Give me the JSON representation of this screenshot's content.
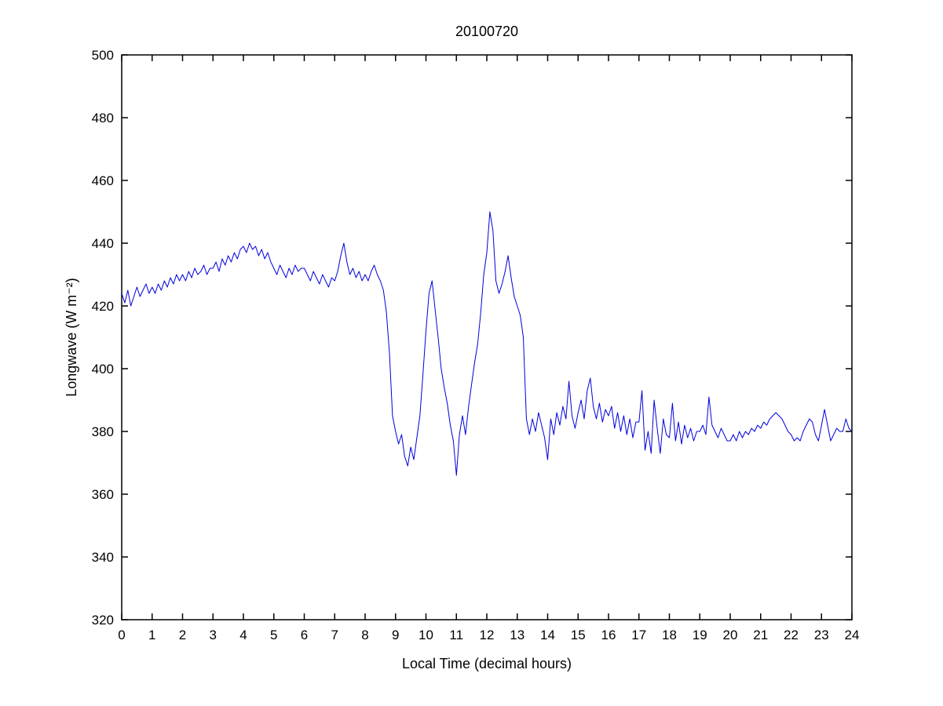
{
  "figure": {
    "background": "#ffffff",
    "axis_color": "#000000"
  },
  "chart_data": {
    "type": "line",
    "title": "20100720",
    "xlabel": "Local Time (decimal hours)",
    "ylabel": "Longwave (W m⁻²)",
    "xlim": [
      0,
      24
    ],
    "ylim": [
      320,
      500
    ],
    "xticks": [
      0,
      1,
      2,
      3,
      4,
      5,
      6,
      7,
      8,
      9,
      10,
      11,
      12,
      13,
      14,
      15,
      16,
      17,
      18,
      19,
      20,
      21,
      22,
      23,
      24
    ],
    "yticks": [
      320,
      340,
      360,
      380,
      400,
      420,
      440,
      460,
      480,
      500
    ],
    "grid": false,
    "legend": null,
    "line_color": "#0000DD",
    "line_width": 1,
    "x_start": 0,
    "x_step": 0.1,
    "series": [
      {
        "name": "longwave",
        "values": [
          424,
          421,
          425,
          420,
          423,
          426,
          423,
          425,
          427,
          424,
          426,
          424,
          427,
          425,
          428,
          426,
          429,
          427,
          430,
          428,
          430,
          428,
          431,
          429,
          432,
          430,
          431,
          433,
          430,
          432,
          432,
          434,
          431,
          435,
          433,
          436,
          434,
          437,
          435,
          438,
          439,
          437,
          440,
          438,
          439,
          436,
          438,
          435,
          437,
          434,
          432,
          430,
          433,
          431,
          429,
          432,
          430,
          433,
          431,
          432,
          432,
          430,
          428,
          431,
          429,
          427,
          430,
          428,
          426,
          429,
          428,
          431,
          436,
          440,
          434,
          430,
          432,
          429,
          431,
          428,
          430,
          428,
          431,
          433,
          430,
          428,
          425,
          418,
          405,
          385,
          380,
          376,
          379,
          372,
          369,
          375,
          371,
          378,
          385,
          398,
          412,
          424,
          428,
          419,
          410,
          400,
          394,
          389,
          382,
          377,
          366,
          379,
          385,
          379,
          388,
          395,
          402,
          408,
          418,
          430,
          437,
          450,
          444,
          428,
          424,
          427,
          431,
          436,
          429,
          423,
          420,
          417,
          410,
          384,
          379,
          384,
          380,
          386,
          382,
          378,
          371,
          384,
          379,
          386,
          382,
          388,
          384,
          396,
          385,
          381,
          386,
          390,
          384,
          393,
          397,
          388,
          384,
          389,
          383,
          387,
          385,
          388,
          381,
          386,
          380,
          385,
          379,
          384,
          378,
          383,
          383,
          393,
          374,
          380,
          373,
          390,
          381,
          373,
          384,
          379,
          378,
          389,
          377,
          383,
          376,
          382,
          378,
          381,
          377,
          380,
          380,
          382,
          379,
          391,
          382,
          380,
          378,
          381,
          379,
          377,
          377,
          379,
          377,
          380,
          378,
          380,
          379,
          381,
          380,
          382,
          381,
          383,
          382,
          384,
          385,
          386,
          385,
          384,
          382,
          380,
          379,
          377,
          378,
          377,
          380,
          382,
          384,
          383,
          379,
          377,
          382,
          387,
          382,
          377,
          379,
          381,
          380,
          380,
          384,
          381,
          380
        ]
      }
    ]
  }
}
